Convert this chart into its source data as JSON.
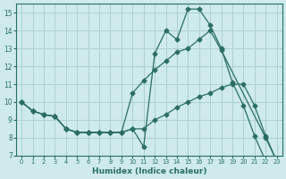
{
  "xlabel": "Humidex (Indice chaleur)",
  "bg_color": "#ceeaea",
  "grid_color": "#aed0d0",
  "line_color": "#2a6e65",
  "line1_x": [
    0,
    1,
    2,
    3,
    4,
    5,
    6,
    7,
    8,
    9,
    10,
    11,
    12,
    13,
    14,
    15,
    16,
    17,
    18,
    19,
    20,
    21,
    22,
    23
  ],
  "line1_y": [
    10.0,
    9.5,
    9.3,
    9.2,
    8.5,
    8.3,
    8.3,
    8.3,
    8.3,
    8.3,
    8.5,
    7.5,
    12.7,
    14.0,
    13.5,
    15.2,
    15.2,
    14.3,
    13.0,
    11.1,
    9.8,
    8.1,
    6.7,
    null
  ],
  "line2_x": [
    0,
    1,
    2,
    3,
    4,
    5,
    6,
    7,
    8,
    9,
    10,
    11,
    12,
    13,
    14,
    15,
    16,
    17,
    18,
    22,
    23
  ],
  "line2_y": [
    10.0,
    9.5,
    9.3,
    9.2,
    8.5,
    8.3,
    8.3,
    8.3,
    8.3,
    8.3,
    10.5,
    11.2,
    11.8,
    12.3,
    12.8,
    13.0,
    13.5,
    14.0,
    12.9,
    8.0,
    6.7
  ],
  "line3_x": [
    0,
    1,
    2,
    3,
    4,
    5,
    6,
    7,
    8,
    9,
    10,
    11,
    12,
    13,
    14,
    15,
    16,
    17,
    18,
    19,
    20,
    21,
    22,
    23
  ],
  "line3_y": [
    10.0,
    9.5,
    9.3,
    9.2,
    8.5,
    8.3,
    8.3,
    8.3,
    8.3,
    8.3,
    8.5,
    8.5,
    9.0,
    9.3,
    9.7,
    10.0,
    10.3,
    10.5,
    10.8,
    11.0,
    11.0,
    9.8,
    8.1,
    6.7
  ],
  "xlim": [
    -0.5,
    23.5
  ],
  "ylim": [
    7.0,
    15.5
  ],
  "yticks": [
    7,
    8,
    9,
    10,
    11,
    12,
    13,
    14,
    15
  ],
  "xticks": [
    0,
    1,
    2,
    3,
    4,
    5,
    6,
    7,
    8,
    9,
    10,
    11,
    12,
    13,
    14,
    15,
    16,
    17,
    18,
    19,
    20,
    21,
    22,
    23
  ]
}
